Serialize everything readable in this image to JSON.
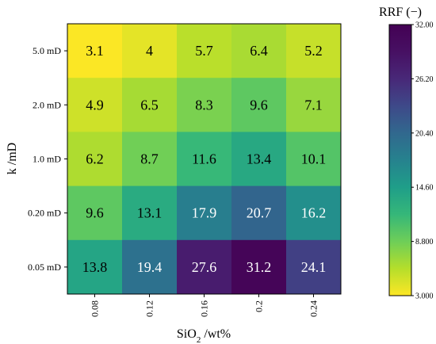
{
  "chart_data": {
    "type": "heatmap",
    "title": "",
    "xlabel": {
      "main": "SiO",
      "sub": "2",
      "rest": " /wt%"
    },
    "ylabel": "k /mD",
    "x_categories": [
      "0.08",
      "0.12",
      "0.16",
      "0.2",
      "0.24"
    ],
    "y_categories": [
      "5.0 mD",
      "2.0 mD",
      "1.0 mD",
      "0.20 mD",
      "0.05 mD"
    ],
    "values": [
      [
        3.1,
        4,
        5.7,
        6.4,
        5.2
      ],
      [
        4.9,
        6.5,
        8.3,
        9.6,
        7.1
      ],
      [
        6.2,
        8.7,
        11.6,
        13.4,
        10.1
      ],
      [
        9.6,
        13.1,
        17.9,
        20.7,
        16.2
      ],
      [
        13.8,
        19.4,
        27.6,
        31.2,
        24.1
      ]
    ],
    "value_labels": [
      [
        "3.1",
        "4",
        "5.7",
        "6.4",
        "5.2"
      ],
      [
        "4.9",
        "6.5",
        "8.3",
        "9.6",
        "7.1"
      ],
      [
        "6.2",
        "8.7",
        "11.6",
        "13.4",
        "10.1"
      ],
      [
        "9.6",
        "13.1",
        "17.9",
        "20.7",
        "16.2"
      ],
      [
        "13.8",
        "19.4",
        "27.6",
        "31.2",
        "24.1"
      ]
    ],
    "colorbar": {
      "title": "RRF (−)",
      "min": 3.0,
      "max": 32.0,
      "ticks": [
        32.0,
        26.2,
        20.4,
        14.6,
        8.8,
        3.0
      ],
      "tick_labels": [
        "32.00",
        "26.20",
        "20.40",
        "14.60",
        "8.800",
        "3.000"
      ],
      "colormap": "viridis-reversed"
    },
    "grid": false
  }
}
